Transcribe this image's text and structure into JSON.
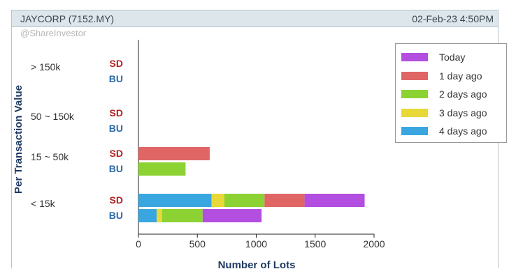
{
  "header": {
    "title": "JAYCORP (7152.MY)",
    "datetime": "02-Feb-23 4:50PM"
  },
  "watermark": "@ShareInvestor",
  "colors": {
    "today": "#b24ee0",
    "day1": "#e06666",
    "day2": "#8cd232",
    "day3": "#e8d838",
    "day4": "#3aa6e0",
    "sd_label": "#b22222",
    "bu_label": "#2a6aa8"
  },
  "chart_data": {
    "type": "bar",
    "orientation": "horizontal",
    "stacked": true,
    "ylabel": "Per Transaction Value",
    "xlabel": "Number of Lots",
    "xlim": [
      0,
      2000
    ],
    "xticks": [
      "0",
      "500",
      "1000",
      "1500",
      "2000"
    ],
    "groups": [
      {
        "label": "> 150k",
        "rows": [
          {
            "side": "SD",
            "values": [
              0,
              0,
              0,
              0,
              0
            ]
          },
          {
            "side": "BU",
            "values": [
              0,
              0,
              0,
              0,
              0
            ]
          }
        ]
      },
      {
        "label": "50 ~ 150k",
        "rows": [
          {
            "side": "SD",
            "values": [
              0,
              0,
              0,
              0,
              0
            ]
          },
          {
            "side": "BU",
            "values": [
              0,
              0,
              0,
              0,
              0
            ]
          }
        ]
      },
      {
        "label": "15 ~ 50k",
        "rows": [
          {
            "side": "SD",
            "values": [
              0,
              0,
              0,
              605,
              0
            ]
          },
          {
            "side": "BU",
            "values": [
              0,
              0,
              400,
              0,
              0
            ]
          }
        ]
      },
      {
        "label": "< 15k",
        "rows": [
          {
            "side": "SD",
            "values": [
              620,
              110,
              340,
              340,
              510
            ]
          },
          {
            "side": "BU",
            "values": [
              155,
              45,
              345,
              0,
              500
            ]
          }
        ]
      }
    ],
    "series_order": [
      "4 days ago",
      "3 days ago",
      "2 days ago",
      "1 day ago",
      "Today"
    ],
    "legend": [
      "Today",
      "1 day ago",
      "2 days ago",
      "3 days ago",
      "4 days ago"
    ],
    "legend_placement": "top-right",
    "grid": false
  }
}
